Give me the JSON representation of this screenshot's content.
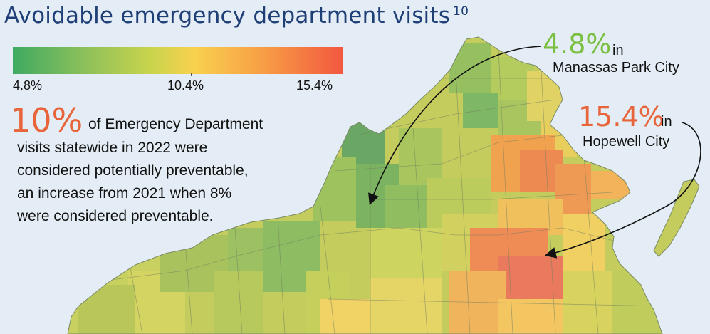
{
  "title": "Avoidable emergency department visits",
  "title_footnote": "10",
  "legend": {
    "min_label": "4.8%",
    "mid_label": "10.4%",
    "max_label": "15.4%",
    "colors": {
      "low": "#3faa62",
      "mid": "#f8d14e",
      "high": "#f2583f"
    }
  },
  "statewide": {
    "value": "10%",
    "lead": "of Emergency Department",
    "lines": [
      "visits statewide in 2022 were",
      "considered potentially preventable,",
      "an increase from 2021 when 8%",
      "were considered preventable."
    ]
  },
  "callouts": {
    "low": {
      "value": "4.8%",
      "in": "in",
      "place": "Manassas Park City",
      "color": "#7cc043"
    },
    "high": {
      "value": "15.4%",
      "in": "in",
      "place": "Hopewell City",
      "color": "#e8643a"
    }
  }
}
